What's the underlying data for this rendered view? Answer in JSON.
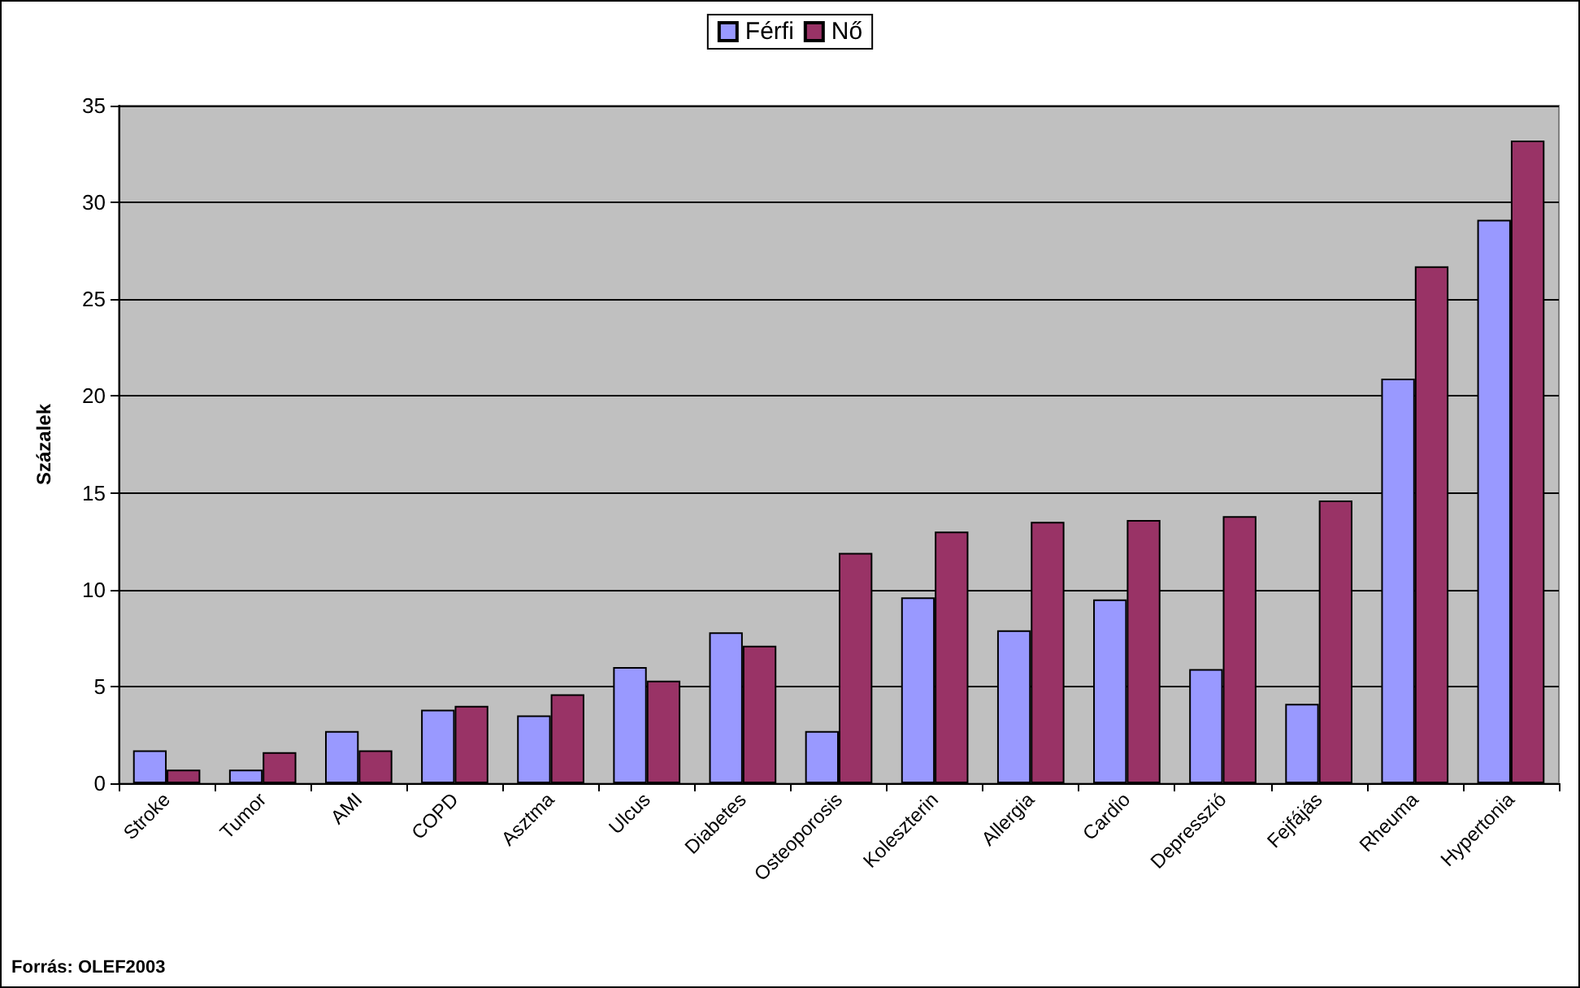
{
  "chart_data": {
    "type": "bar",
    "ylabel": "Százalek",
    "categories": [
      "Stroke",
      "Tumor",
      "AMI",
      "COPD",
      "Asztma",
      "Ulcus",
      "Diabetes",
      "Osteoporosis",
      "Koleszterin",
      "Allergia",
      "Cardio",
      "Depresszió",
      "Fejfájás",
      "Rheuma",
      "Hypertonia"
    ],
    "series": [
      {
        "name": "Férfi",
        "color": "#9999ff",
        "values": [
          1.7,
          0.7,
          2.7,
          3.8,
          3.5,
          6.0,
          7.8,
          2.7,
          9.6,
          7.9,
          9.5,
          5.9,
          4.1,
          20.9,
          29.1
        ]
      },
      {
        "name": "Nő",
        "color": "#993366",
        "values": [
          0.7,
          1.6,
          1.7,
          4.0,
          4.6,
          5.3,
          7.1,
          11.9,
          13.0,
          13.5,
          13.6,
          13.8,
          14.6,
          26.7,
          33.2
        ]
      }
    ],
    "ylim": [
      0,
      35
    ],
    "yticks": [
      0,
      5,
      10,
      15,
      20,
      25,
      30,
      35
    ],
    "grid": "y",
    "legend": "top",
    "annotations": [
      "Forrás: OLEF2003"
    ]
  }
}
